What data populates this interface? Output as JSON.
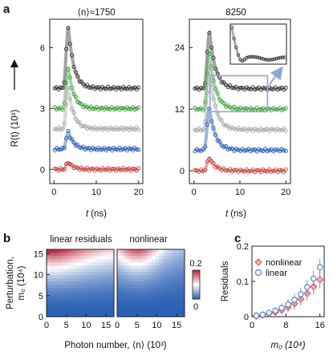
{
  "chart_data": [
    {
      "panel": "a",
      "type": "line",
      "title": "⟨n⟩≈1750",
      "xlabel_var": "t",
      "xlabel_unit": "(ns)",
      "ylabel": "R(t) (10³)",
      "xlim": [
        -1,
        21
      ],
      "ylim": [
        -0.7,
        7.4
      ],
      "xticks": [
        0,
        10,
        20
      ],
      "yticks": [
        0,
        3,
        6
      ],
      "peak_time": 3.4,
      "decay_time": 1.3,
      "rise_time": 0.7,
      "series": [
        {
          "color": "#333333",
          "offset": 4.0,
          "amplitude": 3.0
        },
        {
          "color": "#3ea03e",
          "offset": 3.0,
          "amplitude": 2.0
        },
        {
          "color": "#a8a8a8",
          "offset": 2.0,
          "amplitude": 2.0
        },
        {
          "color": "#2e5cb8",
          "offset": 1.0,
          "amplitude": 0.85
        },
        {
          "color": "#c84040",
          "offset": 0.0,
          "amplitude": 0.35
        }
      ]
    },
    {
      "panel": "a",
      "type": "line",
      "title": "8250",
      "xlabel_var": "t",
      "xlabel_unit": "(ns)",
      "xlim": [
        -1,
        21
      ],
      "ylim": [
        -2.5,
        29.5
      ],
      "xticks": [
        0,
        10,
        20
      ],
      "yticks": [
        0,
        12,
        24
      ],
      "peak_time": 3.4,
      "decay_time": 1.3,
      "rise_time": 0.7,
      "series": [
        {
          "color": "#333333",
          "offset": 16.0,
          "amplitude": 11.0
        },
        {
          "color": "#3ea03e",
          "offset": 12.0,
          "amplitude": 11.0
        },
        {
          "color": "#a8a8a8",
          "offset": 8.0,
          "amplitude": 12.0
        },
        {
          "color": "#2e5cb8",
          "offset": 4.0,
          "amplitude": 8.0
        },
        {
          "color": "#c84040",
          "offset": 0.0,
          "amplitude": 2.5
        }
      ],
      "zoom_region": {
        "x": [
          3.5,
          16
        ],
        "y": [
          11.5,
          18.5
        ]
      }
    },
    {
      "panel": "b",
      "type": "heatmap",
      "titles": [
        "linear residuals",
        "nonlinear"
      ],
      "xlabel": "Photon number, ⟨n⟩ (10³)",
      "ylabel_line1": "Perturbation,",
      "ylabel_line2": "m₀ (10⁴)",
      "xlim": [
        0,
        17
      ],
      "ylim": [
        0,
        16
      ],
      "xticks": [
        0,
        5,
        10,
        15
      ],
      "yticks": [
        0,
        5,
        10,
        15
      ],
      "colorbar": {
        "min": 0,
        "max": 0.2,
        "min_label": "0",
        "max_label": "0.2",
        "colors": [
          "#2a5fb5",
          "#ffffff",
          "#b81c38"
        ]
      }
    },
    {
      "panel": "c",
      "type": "scatter",
      "xlabel": "m₀ (10⁴)",
      "ylabel": "Residuals",
      "xlim": [
        0,
        17
      ],
      "ylim": [
        0,
        0.2
      ],
      "xticks": [
        0,
        8,
        16
      ],
      "yticks": [
        0,
        0.1,
        0.2
      ],
      "series": [
        {
          "name": "nonlinear",
          "marker": "diamond",
          "color": "#d9534f",
          "x": [
            1,
            2.5,
            4,
            5.5,
            7,
            8.5,
            10,
            11.5,
            13,
            14.5,
            16
          ],
          "y": [
            0.002,
            0.005,
            0.009,
            0.013,
            0.019,
            0.027,
            0.037,
            0.05,
            0.066,
            0.085,
            0.105
          ]
        },
        {
          "name": "linear",
          "marker": "circle",
          "color": "#4a7fd4",
          "x": [
            1,
            2.5,
            4,
            5.5,
            7,
            8.5,
            10,
            11.5,
            13,
            14.5,
            16
          ],
          "y": [
            0.003,
            0.006,
            0.011,
            0.017,
            0.025,
            0.035,
            0.048,
            0.064,
            0.084,
            0.108,
            0.14
          ]
        }
      ]
    }
  ],
  "panel_labels": [
    "a",
    "b",
    "c"
  ]
}
